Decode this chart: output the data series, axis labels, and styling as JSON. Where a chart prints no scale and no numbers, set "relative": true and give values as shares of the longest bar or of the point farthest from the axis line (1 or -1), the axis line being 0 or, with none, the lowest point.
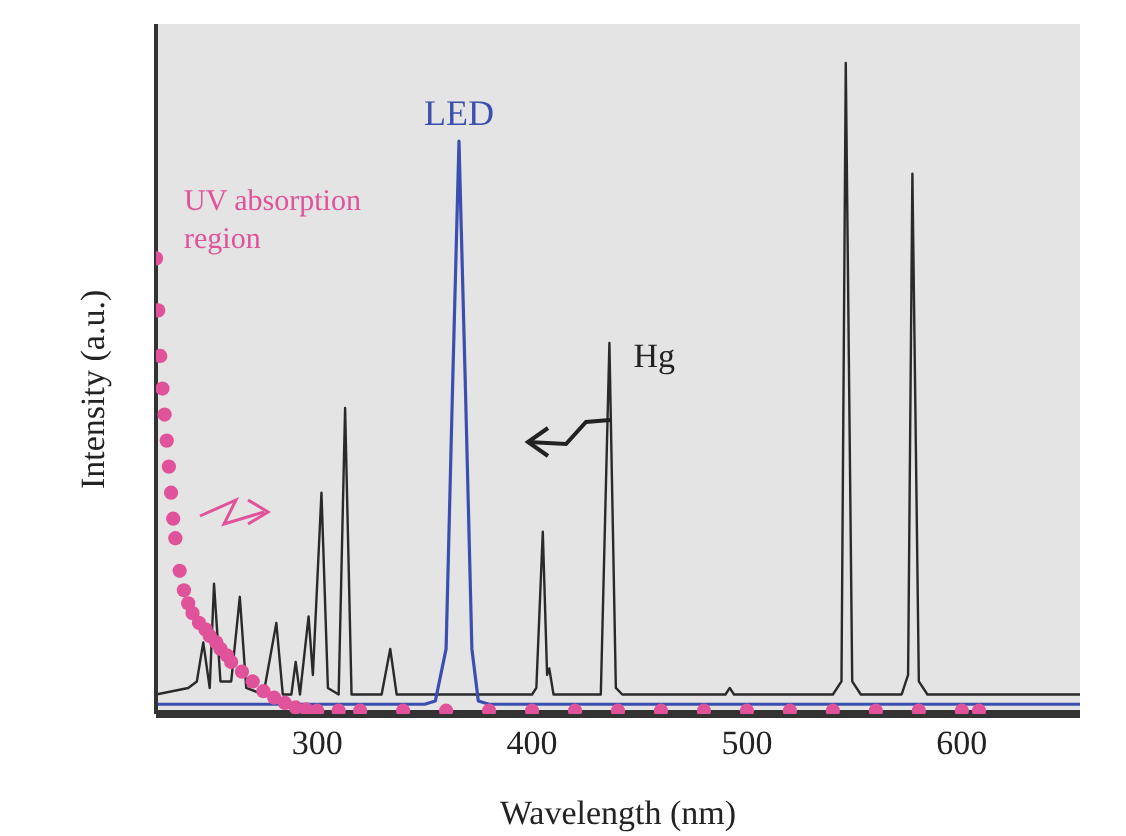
{
  "chart_data": {
    "type": "line",
    "xlabel": "Wavelength  (nm)",
    "ylabel": "Intensity  (a.u.)",
    "relative": true,
    "xlim": [
      225,
      655
    ],
    "xticks": [
      300,
      400,
      500,
      600
    ],
    "grid": false,
    "legend": false,
    "marker": "none",
    "line_style": "solid",
    "series": [
      {
        "type": "line",
        "color": "#2a2a2a",
        "x": [
          225,
          240,
          244,
          247,
          250,
          252,
          255,
          260,
          264,
          267,
          275,
          281,
          284,
          288,
          290,
          292,
          296,
          298,
          302,
          305,
          310,
          313,
          316,
          330,
          334,
          337,
          360,
          400,
          402,
          405,
          407,
          408,
          410,
          432,
          436,
          439,
          442,
          490,
          492,
          494,
          540,
          544,
          546,
          549,
          553,
          572,
          575,
          577,
          580,
          584,
          655
        ],
        "values": [
          0.03,
          0.04,
          0.05,
          0.11,
          0.04,
          0.2,
          0.05,
          0.05,
          0.18,
          0.04,
          0.03,
          0.14,
          0.03,
          0.03,
          0.08,
          0.03,
          0.15,
          0.06,
          0.34,
          0.04,
          0.03,
          0.47,
          0.03,
          0.03,
          0.1,
          0.03,
          0.03,
          0.03,
          0.04,
          0.28,
          0.06,
          0.07,
          0.03,
          0.03,
          0.57,
          0.04,
          0.03,
          0.03,
          0.04,
          0.03,
          0.03,
          0.05,
          1.0,
          0.05,
          0.03,
          0.03,
          0.06,
          0.83,
          0.05,
          0.03,
          0.03
        ]
      },
      {
        "type": "line",
        "name": "LED",
        "color": "#3a4fb0",
        "x": [
          225,
          350,
          355,
          360,
          363,
          366,
          369,
          372,
          375,
          380,
          655
        ],
        "values": [
          0.015,
          0.015,
          0.02,
          0.1,
          0.5,
          0.88,
          0.5,
          0.1,
          0.02,
          0.015,
          0.015
        ]
      },
      {
        "type": "scatter",
        "name": "UV absorption region",
        "color": "#e0529a",
        "marker": "circle",
        "x": [
          225,
          226,
          227,
          228,
          229,
          230,
          231,
          232,
          233,
          234,
          236,
          238,
          240,
          242,
          245,
          248,
          250,
          253,
          255,
          258,
          260,
          265,
          270,
          275,
          280,
          285,
          290,
          295,
          300,
          310,
          320,
          340,
          360,
          380,
          400,
          420,
          440,
          460,
          480,
          500,
          520,
          540,
          560,
          580,
          600,
          608
        ],
        "values": [
          0.7,
          0.62,
          0.55,
          0.5,
          0.46,
          0.42,
          0.38,
          0.34,
          0.3,
          0.27,
          0.22,
          0.19,
          0.17,
          0.155,
          0.14,
          0.13,
          0.12,
          0.11,
          0.1,
          0.09,
          0.08,
          0.065,
          0.05,
          0.035,
          0.025,
          0.017,
          0.01,
          0.007,
          0.005,
          0.005,
          0.005,
          0.005,
          0.005,
          0.005,
          0.005,
          0.005,
          0.005,
          0.005,
          0.005,
          0.005,
          0.005,
          0.005,
          0.005,
          0.005,
          0.005,
          0.005
        ]
      }
    ],
    "annotations": [
      {
        "text": "Hg",
        "x": 436,
        "y": 0.57
      }
    ]
  }
}
